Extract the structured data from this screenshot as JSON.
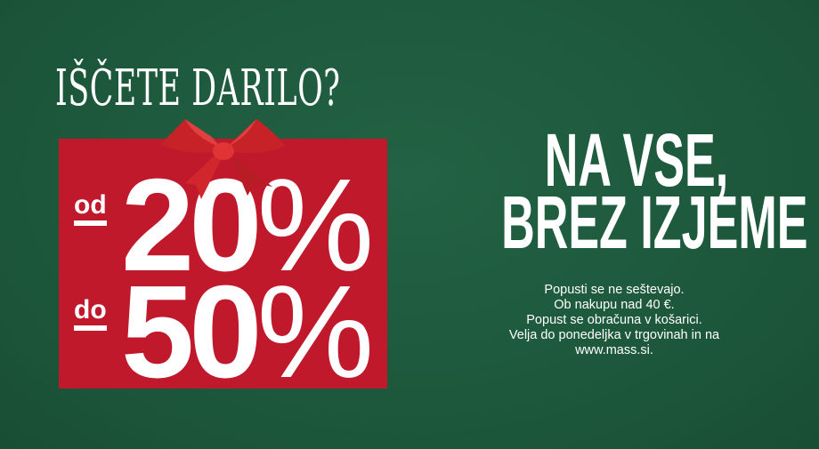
{
  "banner": {
    "title": "IŠČETE DARILO?",
    "from_prefix": "od",
    "from_value": "20",
    "to_prefix": "do",
    "to_value": "50",
    "percent_sign": "%",
    "headline_line1": "NA VSE,",
    "headline_line2": "BREZ IZJEME",
    "terms": [
      "Popusti se ne seštevajo.",
      "Ob nakupu nad 40 €.",
      "Popust se obračuna v košarici.",
      "Velja do ponedeljka v trgovinah in na",
      "www.mass.si."
    ],
    "colors": {
      "background": "#1e5a3e",
      "red_box": "#c1192c",
      "text": "#ffffff",
      "bow": "#d42a2a"
    }
  }
}
